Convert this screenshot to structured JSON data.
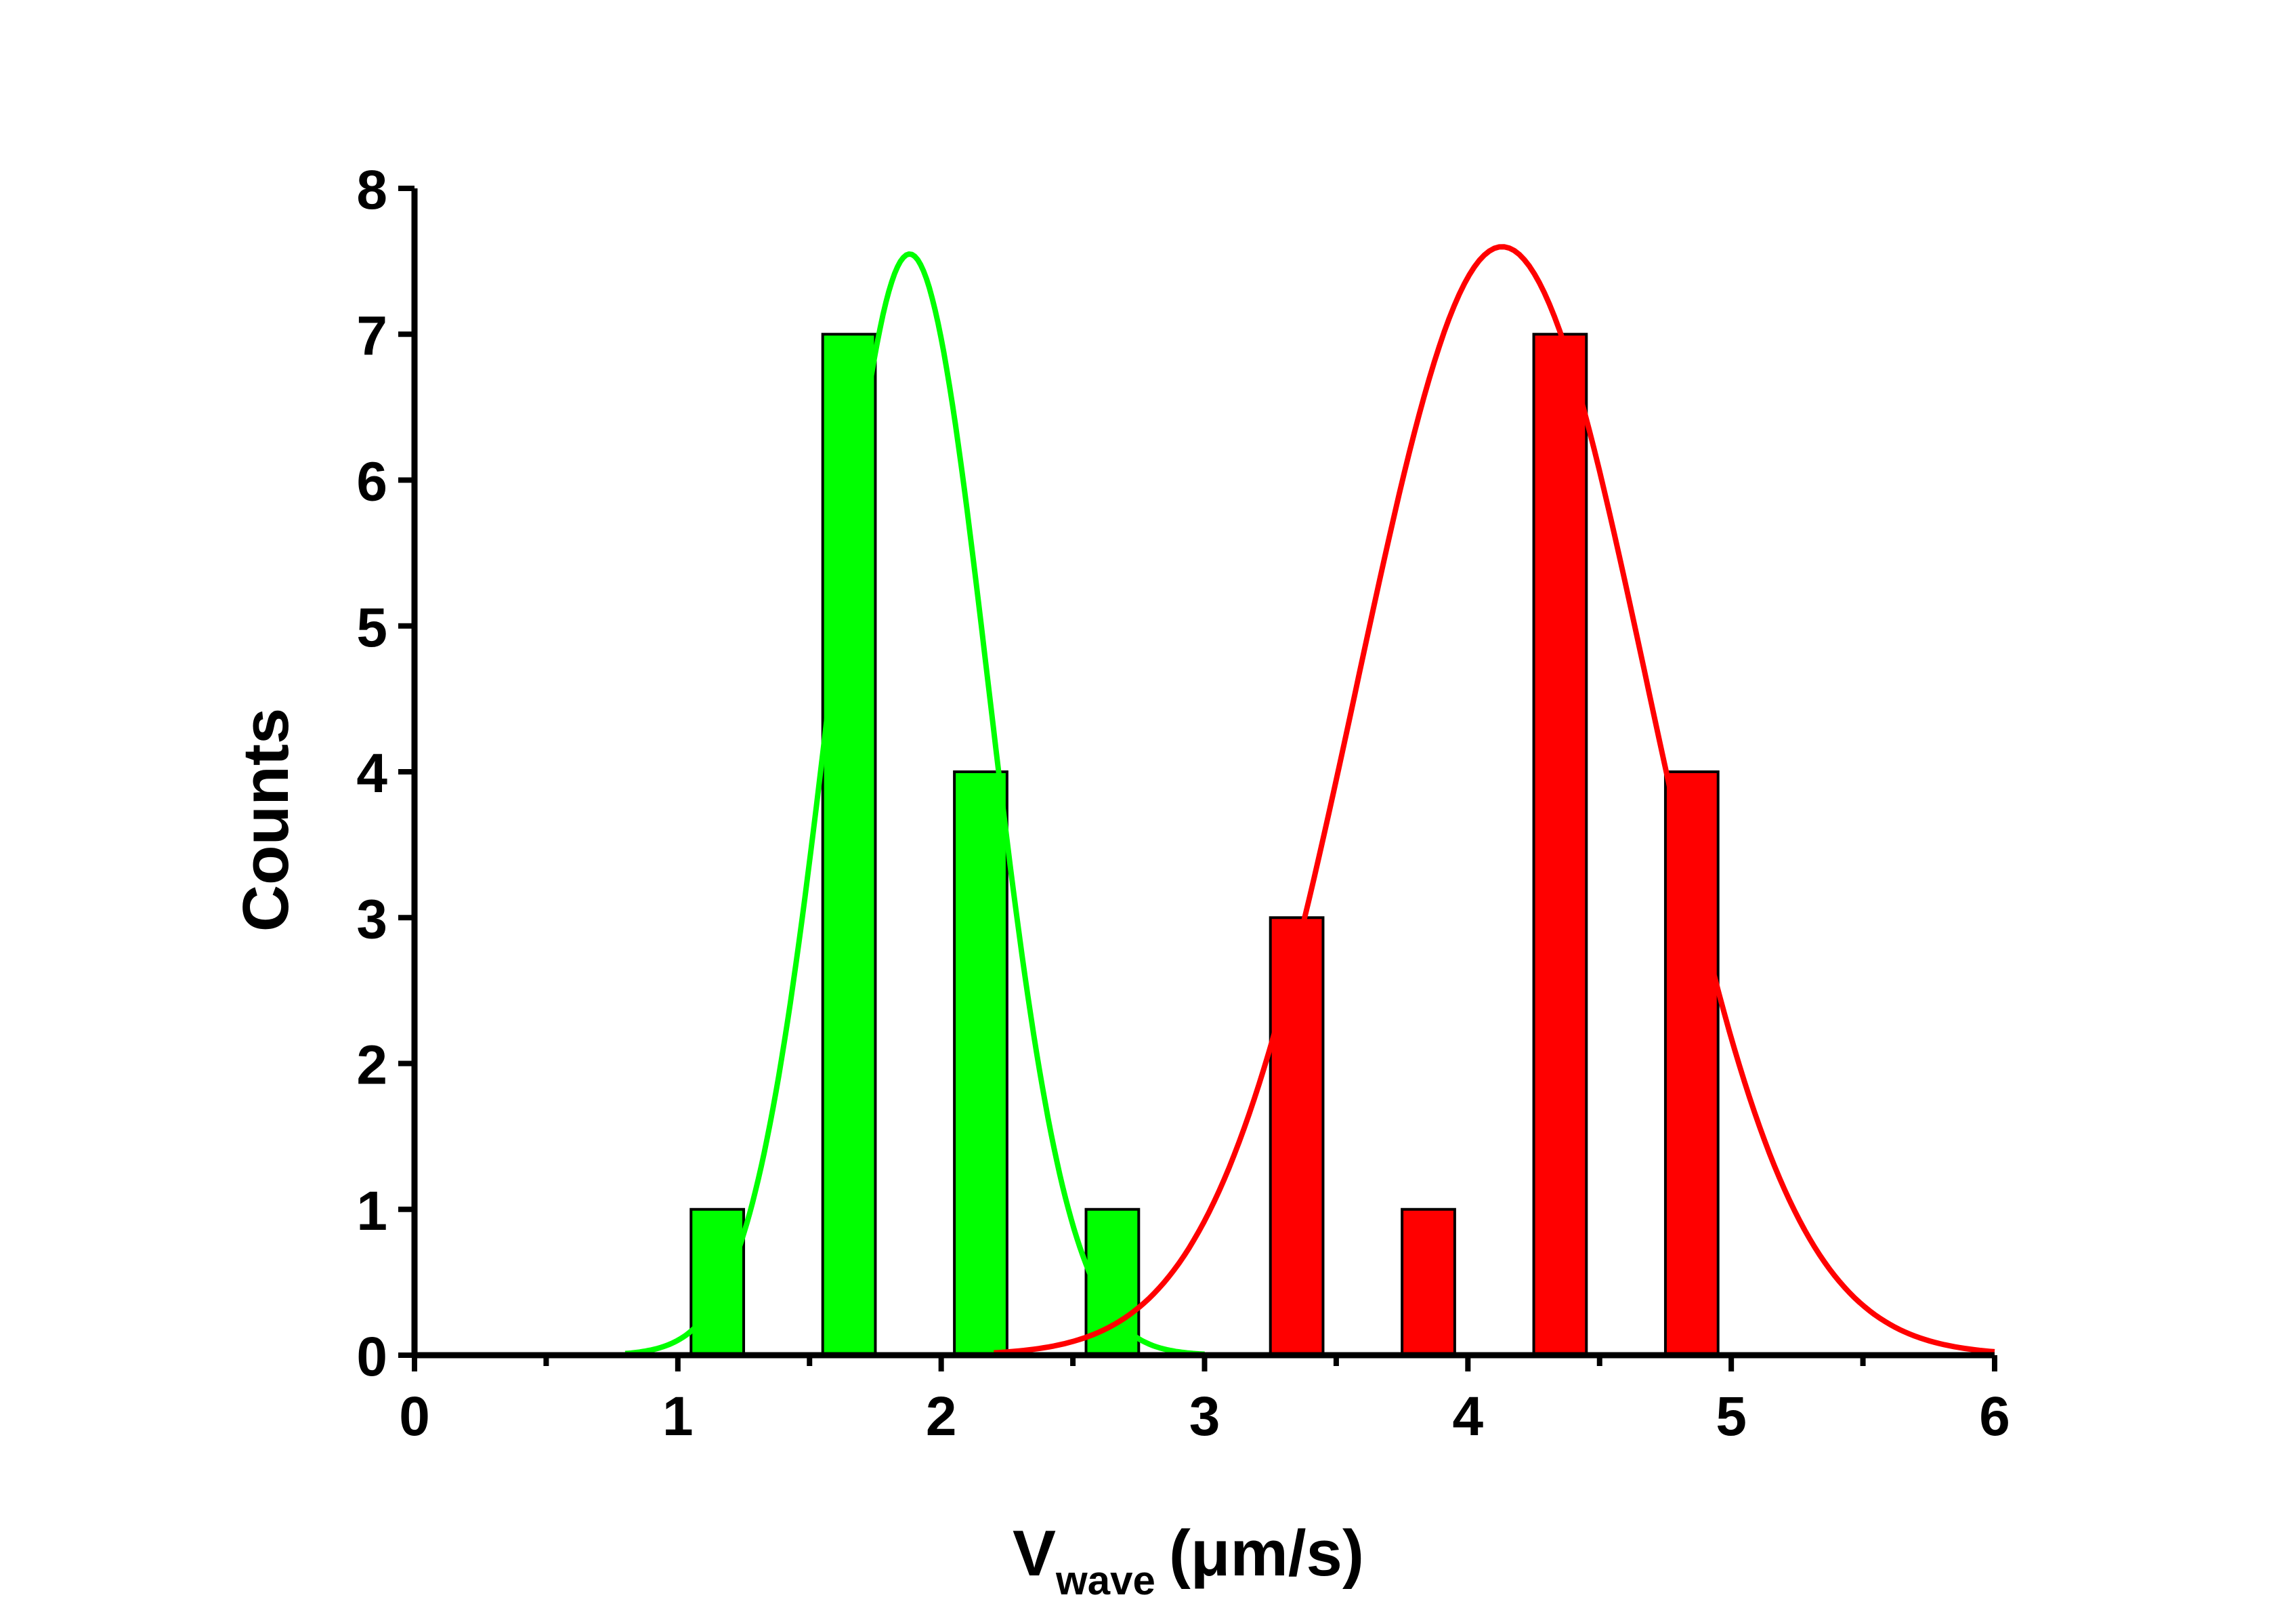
{
  "chart_data": {
    "type": "bar",
    "title": "",
    "xlabel": "V",
    "xlabel_subscript": "wave",
    "xlabel_units": "(μm/s)",
    "ylabel": "Counts",
    "xlim": [
      0,
      6
    ],
    "ylim": [
      0,
      8
    ],
    "xticks": [
      "0",
      "1",
      "2",
      "3",
      "4",
      "5",
      "6"
    ],
    "yticks": [
      "0",
      "1",
      "2",
      "3",
      "4",
      "5",
      "6",
      "7",
      "8"
    ],
    "bar_width": 0.2,
    "series": [
      {
        "name": "green histogram",
        "color": "#00ff00",
        "x": [
          1.15,
          1.65,
          2.15,
          2.65
        ],
        "values": [
          1,
          7,
          4,
          1
        ]
      },
      {
        "name": "red histogram",
        "color": "#ff0000",
        "x": [
          3.35,
          3.85,
          4.35,
          4.85
        ],
        "values": [
          3,
          1,
          7,
          4
        ]
      }
    ],
    "fits": [
      {
        "name": "green gaussian fit",
        "color": "#00ff00",
        "center": 1.88,
        "amplitude": 7.55,
        "sigma": 0.3,
        "x_range": [
          0.8,
          3.0
        ]
      },
      {
        "name": "red gaussian fit",
        "color": "#ff0000",
        "center": 4.13,
        "amplitude": 7.6,
        "sigma": 0.55,
        "x_range": [
          2.2,
          6.0
        ]
      }
    ]
  }
}
